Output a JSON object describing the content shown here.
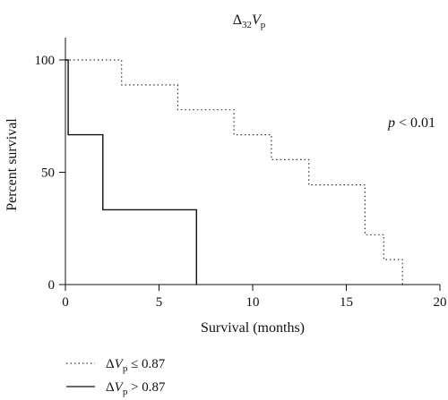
{
  "chart_data": {
    "type": "line",
    "subtype": "step",
    "title": {
      "delta": "Δ",
      "sub": "32",
      "var": "V",
      "var_sub": "p"
    },
    "xlabel": "Survival (months)",
    "ylabel": "Percent survival",
    "xlim": [
      0,
      20
    ],
    "ylim": [
      0,
      100
    ],
    "x_ticks": [
      0,
      5,
      10,
      15,
      20
    ],
    "y_ticks": [
      0,
      50,
      100
    ],
    "grid": false,
    "legend_position": "bottom-left",
    "annotation": {
      "var": "p",
      "rest": " < 0.01",
      "position": "right"
    },
    "series": [
      {
        "legend": {
          "delta": "Δ",
          "var": "V",
          "var_sub": "p",
          "rest": " ≤ 0.87"
        },
        "style": "dotted",
        "color": "#333333",
        "points": [
          [
            0,
            100
          ],
          [
            3,
            100
          ],
          [
            3,
            88.9
          ],
          [
            6,
            88.9
          ],
          [
            6,
            77.8
          ],
          [
            9,
            77.8
          ],
          [
            9,
            66.7
          ],
          [
            11,
            66.7
          ],
          [
            11,
            55.6
          ],
          [
            13,
            55.6
          ],
          [
            13,
            44.4
          ],
          [
            16,
            44.4
          ],
          [
            16,
            22.2
          ],
          [
            17,
            22.2
          ],
          [
            17,
            11.1
          ],
          [
            18,
            11.1
          ],
          [
            18,
            0
          ]
        ]
      },
      {
        "legend": {
          "delta": "Δ",
          "var": "V",
          "var_sub": "p",
          "rest": " > 0.87"
        },
        "style": "solid",
        "color": "#111111",
        "points": [
          [
            0,
            100
          ],
          [
            0.15,
            100
          ],
          [
            0.15,
            66.7
          ],
          [
            2,
            66.7
          ],
          [
            2,
            33.3
          ],
          [
            7,
            33.3
          ],
          [
            7,
            0
          ]
        ]
      }
    ]
  }
}
